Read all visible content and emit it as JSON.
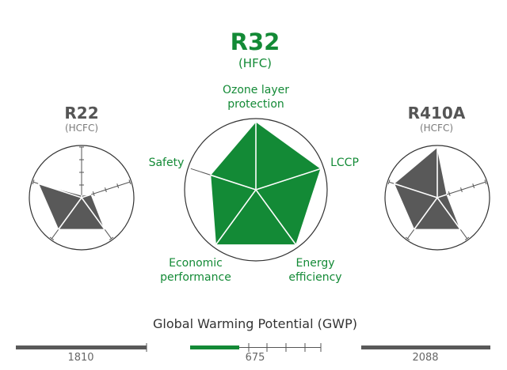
{
  "colors": {
    "green": "#138a36",
    "dark": "#595959",
    "gray_text": "#7a7a7a",
    "title_gray": "#555555"
  },
  "chart_data": [
    {
      "type": "radar",
      "name": "R22",
      "subtitle": "(HCFC)",
      "axes": [
        "Ozone layer protection",
        "LCCP",
        "Energy efficiency",
        "Economic performance",
        "Safety"
      ],
      "values": [
        0.05,
        0.2,
        0.78,
        0.78,
        0.9
      ],
      "range": [
        0,
        1
      ]
    },
    {
      "type": "radar",
      "name": "R32",
      "subtitle": "(HFC)",
      "axes": [
        "Ozone layer protection",
        "LCCP",
        "Energy efficiency",
        "Economic performance",
        "Safety"
      ],
      "axis_labels": [
        [
          "Ozone layer",
          "protection"
        ],
        [
          "LCCP"
        ],
        [
          "Energy",
          "efficiency"
        ],
        [
          "Economic",
          "performance"
        ],
        [
          "Safety"
        ]
      ],
      "values": [
        1,
        1,
        1,
        1,
        0.7
      ],
      "range": [
        0,
        1
      ]
    },
    {
      "type": "radar",
      "name": "R410A",
      "subtitle": "(HCFC)",
      "axes": [
        "Ozone layer protection",
        "LCCP",
        "Energy efficiency",
        "Economic performance",
        "Safety"
      ],
      "values": [
        1,
        0.2,
        0.78,
        0.78,
        0.9
      ],
      "range": [
        0,
        1
      ]
    },
    {
      "type": "bar",
      "title": "Global Warming Potential (GWP)",
      "series": [
        {
          "name": "R22",
          "value": 1810,
          "label": "1810"
        },
        {
          "name": "R32",
          "value": 675,
          "label": "675"
        },
        {
          "name": "R410A",
          "value": 2088,
          "label": "2088"
        }
      ]
    }
  ]
}
